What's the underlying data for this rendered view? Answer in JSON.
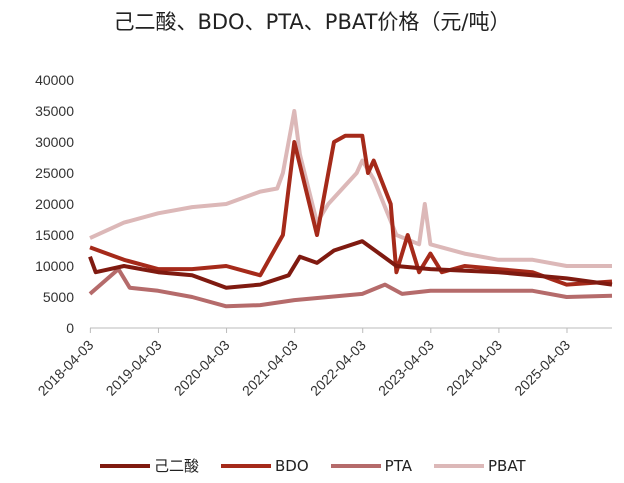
{
  "chart_data": {
    "type": "line",
    "title": "己二酸、BDO、PTA、PBAT价格（元/吨）",
    "ylim": [
      0,
      40000
    ],
    "yticks": [
      0,
      5000,
      10000,
      15000,
      20000,
      25000,
      30000,
      35000,
      40000
    ],
    "xticks": [
      "2018-04-03",
      "2019-04-03",
      "2020-04-03",
      "2021-04-03",
      "2022-04-03",
      "2023-04-03",
      "2024-04-03",
      "2025-04-03"
    ],
    "xlim": [
      "2018-04",
      "2025-12"
    ],
    "legend": "bottom",
    "grid": false,
    "series": [
      {
        "name": "己二酸",
        "color": "#7f1a10",
        "points": [
          [
            "2018-04",
            11500
          ],
          [
            "2018-05",
            9000
          ],
          [
            "2018-10",
            10000
          ],
          [
            "2019-04",
            9000
          ],
          [
            "2019-10",
            8500
          ],
          [
            "2020-04",
            6500
          ],
          [
            "2020-10",
            7000
          ],
          [
            "2021-03",
            8500
          ],
          [
            "2021-05",
            11500
          ],
          [
            "2021-08",
            10500
          ],
          [
            "2021-11",
            12500
          ],
          [
            "2022-04",
            14000
          ],
          [
            "2022-07",
            12000
          ],
          [
            "2022-10",
            10000
          ],
          [
            "2023-04",
            9500
          ],
          [
            "2024-04",
            9000
          ],
          [
            "2025-04",
            8000
          ],
          [
            "2025-12",
            7000
          ]
        ]
      },
      {
        "name": "BDO",
        "color": "#a52a1a",
        "points": [
          [
            "2018-04",
            13000
          ],
          [
            "2018-10",
            11000
          ],
          [
            "2019-04",
            9500
          ],
          [
            "2019-10",
            9500
          ],
          [
            "2020-04",
            10000
          ],
          [
            "2020-10",
            8500
          ],
          [
            "2021-02",
            15000
          ],
          [
            "2021-04",
            30000
          ],
          [
            "2021-08",
            15000
          ],
          [
            "2021-11",
            30000
          ],
          [
            "2022-01",
            31000
          ],
          [
            "2022-04",
            31000
          ],
          [
            "2022-05",
            25000
          ],
          [
            "2022-06",
            27000
          ],
          [
            "2022-09",
            20000
          ],
          [
            "2022-10",
            9000
          ],
          [
            "2022-12",
            15000
          ],
          [
            "2023-02",
            9000
          ],
          [
            "2023-04",
            12000
          ],
          [
            "2023-06",
            9000
          ],
          [
            "2023-10",
            10000
          ],
          [
            "2024-04",
            9500
          ],
          [
            "2024-10",
            9000
          ],
          [
            "2025-04",
            7000
          ],
          [
            "2025-12",
            7500
          ]
        ]
      },
      {
        "name": "PTA",
        "color": "#b56b6b",
        "points": [
          [
            "2018-04",
            5500
          ],
          [
            "2018-09",
            9500
          ],
          [
            "2018-11",
            6500
          ],
          [
            "2019-04",
            6000
          ],
          [
            "2019-10",
            5000
          ],
          [
            "2020-04",
            3500
          ],
          [
            "2020-10",
            3700
          ],
          [
            "2021-04",
            4500
          ],
          [
            "2021-10",
            5000
          ],
          [
            "2022-04",
            5500
          ],
          [
            "2022-08",
            7000
          ],
          [
            "2022-11",
            5500
          ],
          [
            "2023-04",
            6000
          ],
          [
            "2024-04",
            6000
          ],
          [
            "2024-10",
            6000
          ],
          [
            "2025-04",
            5000
          ],
          [
            "2025-12",
            5200
          ]
        ]
      },
      {
        "name": "PBAT",
        "color": "#dcb8b8",
        "points": [
          [
            "2018-04",
            14500
          ],
          [
            "2018-10",
            17000
          ],
          [
            "2019-04",
            18500
          ],
          [
            "2019-10",
            19500
          ],
          [
            "2020-04",
            20000
          ],
          [
            "2020-10",
            22000
          ],
          [
            "2021-01",
            22500
          ],
          [
            "2021-02",
            25000
          ],
          [
            "2021-04",
            35000
          ],
          [
            "2021-05",
            28000
          ],
          [
            "2021-08",
            17000
          ],
          [
            "2021-10",
            20000
          ],
          [
            "2022-03",
            25000
          ],
          [
            "2022-04",
            27000
          ],
          [
            "2022-06",
            24000
          ],
          [
            "2022-10",
            15000
          ],
          [
            "2023-02",
            13500
          ],
          [
            "2023-03",
            20000
          ],
          [
            "2023-04",
            13500
          ],
          [
            "2023-10",
            12000
          ],
          [
            "2024-04",
            11000
          ],
          [
            "2024-10",
            11000
          ],
          [
            "2025-04",
            10000
          ],
          [
            "2025-12",
            10000
          ]
        ]
      }
    ]
  }
}
